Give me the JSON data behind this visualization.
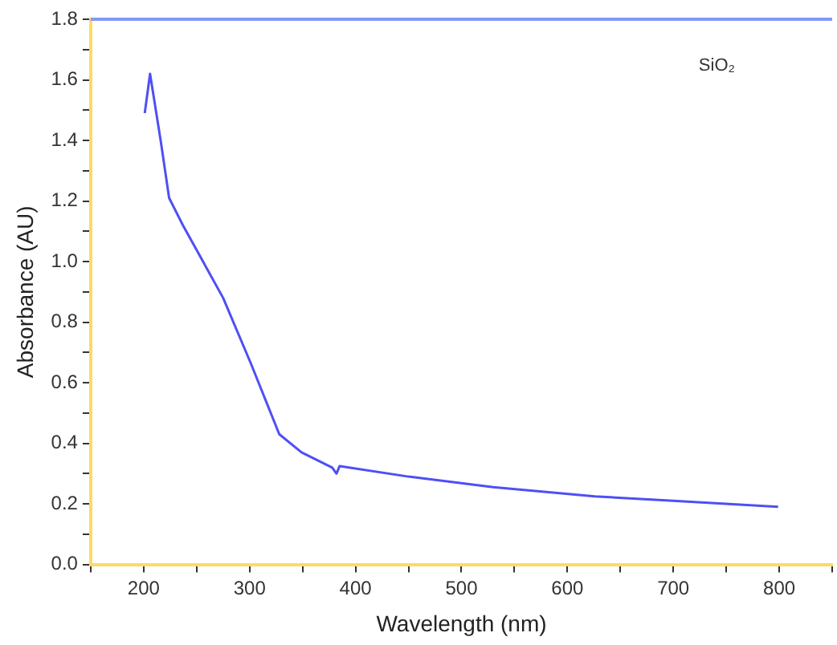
{
  "chart_data": {
    "type": "line",
    "xlabel": "Wavelength (nm)",
    "ylabel": "Absorbance (AU)",
    "annotations": [
      "SiO₂"
    ],
    "x": [
      201,
      206,
      216,
      224,
      237,
      275,
      301,
      328,
      349,
      378,
      382,
      385,
      450,
      530,
      626,
      700,
      799
    ],
    "series": [
      {
        "color": "#4f4ff5",
        "values": [
          1.49,
          1.62,
          1.4,
          1.21,
          1.12,
          0.88,
          0.665,
          0.43,
          0.37,
          0.32,
          0.3,
          0.325,
          0.29,
          0.255,
          0.225,
          0.21,
          0.19
        ]
      }
    ],
    "xlim": [
      150,
      850
    ],
    "xticks": [
      {
        "value": 150,
        "label": null
      },
      200,
      {
        "value": 250,
        "label": null
      },
      300,
      {
        "value": 350,
        "label": null
      },
      400,
      {
        "value": 450,
        "label": null
      },
      500,
      {
        "value": 550,
        "label": null
      },
      600,
      {
        "value": 650,
        "label": null
      },
      700,
      {
        "value": 750,
        "label": null
      },
      800,
      {
        "value": 850,
        "label": null
      }
    ],
    "ylim": [
      0,
      1.8
    ],
    "yticks": [
      {
        "value": 0,
        "label": "0.0"
      },
      {
        "value": 0.1,
        "label": null
      },
      0.2,
      {
        "value": 0.3,
        "label": null
      },
      0.4,
      {
        "value": 0.5,
        "label": null
      },
      0.6,
      {
        "value": 0.7,
        "label": null
      },
      0.8,
      {
        "value": 0.9,
        "label": null
      },
      {
        "value": 1,
        "label": "1.0"
      },
      {
        "value": 1.1,
        "label": null
      },
      1.2,
      {
        "value": 1.3,
        "label": null
      },
      1.4,
      {
        "value": 1.5,
        "label": null
      },
      1.6,
      {
        "value": 1.7,
        "label": null
      },
      1.8
    ],
    "grid": false,
    "legend": false,
    "marker": "none",
    "line_style": "solid"
  }
}
